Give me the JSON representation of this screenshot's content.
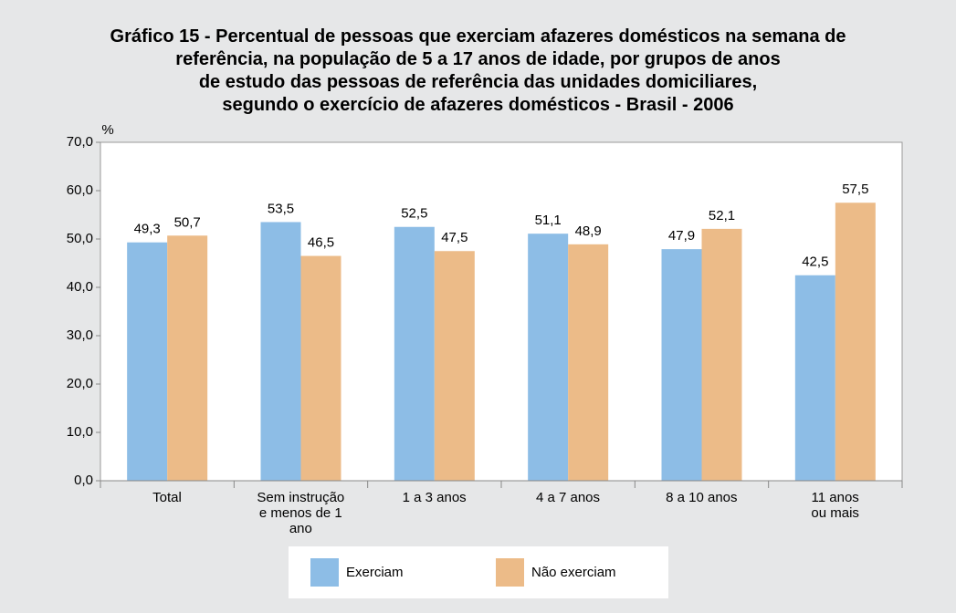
{
  "chart_data": {
    "type": "bar",
    "title": "Gráfico 15 - Percentual de pessoas que exerciam afazeres domésticos na semana de\nreferência, na população de 5 a 17 anos de idade, por grupos de anos\nde estudo das pessoas de referência das unidades domiciliares,\nsegundo o exercício de afazeres domésticos - Brasil - 2006",
    "y_label": "%",
    "categories": [
      "Total",
      "Sem instrução\ne menos de 1\nano",
      "1 a 3 anos",
      "4 a 7 anos",
      "8 a 10 anos",
      "11 anos\nou mais"
    ],
    "series": [
      {
        "name": "Exerciam",
        "color": "#8dbde6",
        "values": [
          49.3,
          53.5,
          52.5,
          51.1,
          47.9,
          42.5
        ],
        "value_labels": [
          "49,3",
          "53,5",
          "52,5",
          "51,1",
          "47,9",
          "42,5"
        ]
      },
      {
        "name": "Não exerciam",
        "color": "#ecbb88",
        "values": [
          50.7,
          46.5,
          47.5,
          48.9,
          52.1,
          57.5
        ],
        "value_labels": [
          "50,7",
          "46,5",
          "47,5",
          "48,9",
          "52,1",
          "57,5"
        ]
      }
    ],
    "ylim": [
      0,
      70
    ],
    "yticks": [
      {
        "value": 0,
        "label": "0,0"
      },
      {
        "value": 10,
        "label": "10,0"
      },
      {
        "value": 20,
        "label": "20,0"
      },
      {
        "value": 30,
        "label": "30,0"
      },
      {
        "value": 40,
        "label": "40,0"
      },
      {
        "value": 50,
        "label": "50,0"
      },
      {
        "value": 60,
        "label": "60,0"
      },
      {
        "value": 70,
        "label": "70,0"
      }
    ],
    "legend": "bottom"
  }
}
